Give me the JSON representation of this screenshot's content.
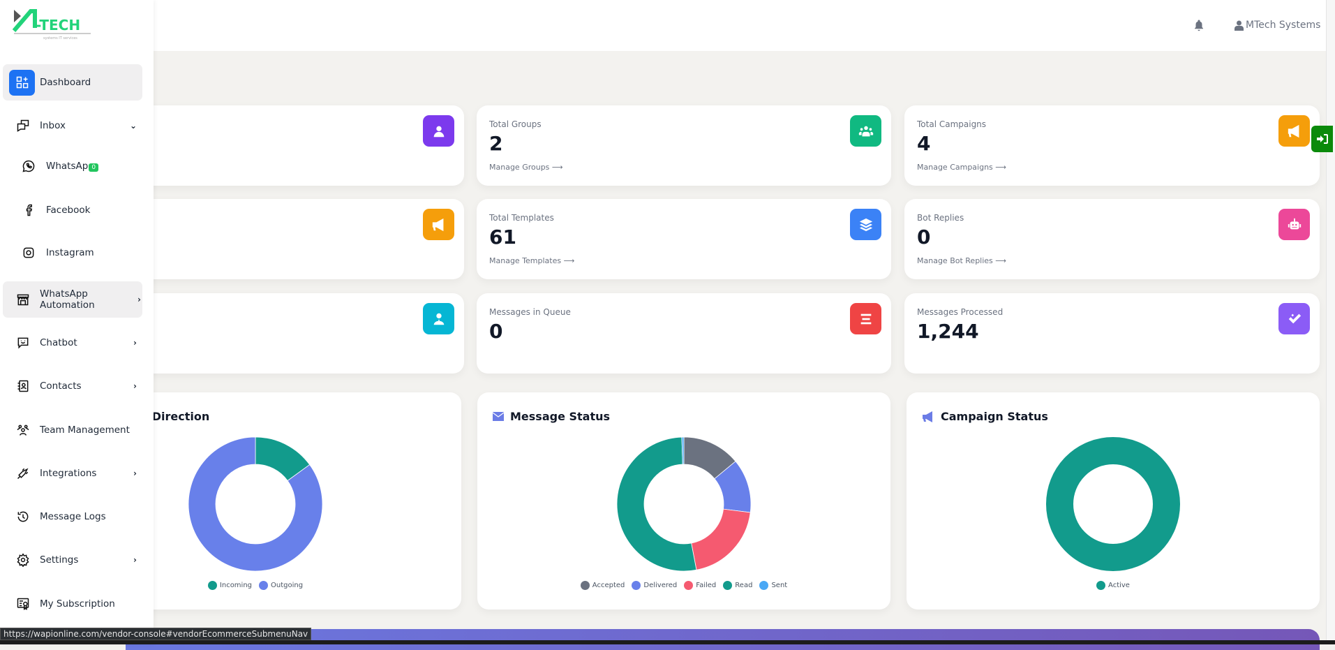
{
  "header": {
    "user_name": "MTech Systems"
  },
  "logo": {
    "text": "M-TECH",
    "tagline": "systems IT services"
  },
  "sidebar": {
    "items": [
      {
        "label": "Dashboard",
        "icon": "dashboard-icon"
      },
      {
        "label": "Inbox",
        "icon": "inbox-icon"
      },
      {
        "label": "WhatsAp",
        "icon": "whatsapp-icon",
        "badge": "0"
      },
      {
        "label": "Facebook",
        "icon": "facebook-icon"
      },
      {
        "label": "Instagram",
        "icon": "instagram-icon"
      },
      {
        "label": "WhatsApp Automation",
        "icon": "store-icon"
      },
      {
        "label": "Chatbot",
        "icon": "chatbot-icon"
      },
      {
        "label": "Contacts",
        "icon": "contacts-icon"
      },
      {
        "label": "Team Management",
        "icon": "team-icon"
      },
      {
        "label": "Integrations",
        "icon": "plug-icon"
      },
      {
        "label": "Message Logs",
        "icon": "history-icon"
      },
      {
        "label": "Settings",
        "icon": "gear-icon"
      },
      {
        "label": "My Subscription",
        "icon": "certificate-icon"
      }
    ]
  },
  "stats": [
    {
      "label": "Total Groups",
      "value": "2",
      "link": "Manage Groups ⟶",
      "color": "#10b981"
    },
    {
      "label": "Total Campaigns",
      "value": "4",
      "link": "Manage Campaigns ⟶",
      "color": "#f59e0b"
    },
    {
      "label": "Total Templates",
      "value": "61",
      "link": "Manage Templates ⟶",
      "color": "#3b82f6"
    },
    {
      "label": "Bot Replies",
      "value": "0",
      "link": "Manage Bot Replies ⟶",
      "color": "#ec4899"
    },
    {
      "label": "Messages in Queue",
      "value": "0",
      "color": "#ef4444"
    },
    {
      "label": "Messages Processed",
      "value": "1,244",
      "color": "#8b5cf6"
    }
  ],
  "hidden_card_colors": [
    "#7c3aed",
    "#f59e0b",
    "#06b6d4"
  ],
  "chart_data": [
    {
      "type": "pie",
      "title": "Conversation Direction",
      "categories": [
        "Incoming",
        "Outgoing"
      ],
      "values": [
        15,
        85
      ],
      "colors": [
        "#129b8c",
        "#6880ea"
      ]
    },
    {
      "type": "pie",
      "title": "Message Status",
      "categories": [
        "Accepted",
        "Delivered",
        "Failed",
        "Read",
        "Sent"
      ],
      "values": [
        14,
        13,
        20,
        52.5,
        0.5
      ],
      "colors": [
        "#6b7280",
        "#6880ea",
        "#f55a70",
        "#129b8c",
        "#4aa8f5"
      ]
    },
    {
      "type": "pie",
      "title": "Campaign Status",
      "categories": [
        "Active"
      ],
      "values": [
        100
      ],
      "colors": [
        "#129b8c"
      ]
    }
  ],
  "status_url": "https://wapionline.com/vendor-console#vendorEcommerceSubmenuNav"
}
